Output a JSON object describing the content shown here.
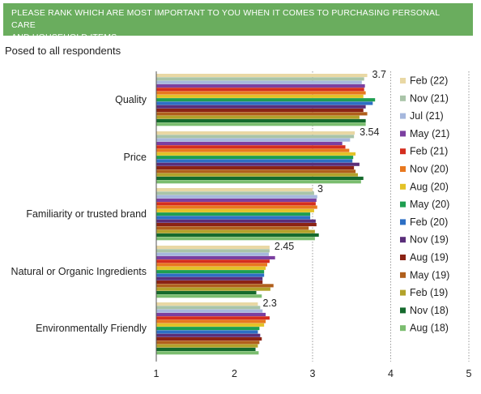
{
  "header": {
    "line1": "PLEASE RANK WHICH ARE MOST IMPORTANT TO YOU WHEN IT COMES TO PURCHASING PERSONAL CARE",
    "line2": "AND HOUSEHOLD ITEMS."
  },
  "subtitle": "Posed to all respondents",
  "colors": {
    "banner": "#6aad5e",
    "grid": "#9a9a9a"
  },
  "chart_data": {
    "type": "bar",
    "orientation": "horizontal",
    "categories": [
      "Quality",
      "Price",
      "Familiarity or trusted brand",
      "Natural or Organic Ingredients",
      "Environmentally Friendly"
    ],
    "xlim": [
      1,
      5
    ],
    "xticks": [
      "1",
      "2",
      "3",
      "4",
      "5"
    ],
    "grid": "dotted vertical at 3, 4, 5",
    "legend_position": "right",
    "annotations": [
      "3.7",
      "3.54",
      "3",
      "2.45",
      "2.3"
    ],
    "series": [
      {
        "name": "Feb (22)",
        "color": "#e9d8a4",
        "values": [
          3.7,
          3.54,
          3.0,
          2.45,
          2.3
        ]
      },
      {
        "name": "Nov (21)",
        "color": "#a9c4a8",
        "values": [
          3.66,
          3.53,
          3.02,
          2.45,
          2.33
        ]
      },
      {
        "name": "Jul (21)",
        "color": "#a5b7dd",
        "values": [
          3.63,
          3.48,
          3.06,
          2.44,
          2.36
        ]
      },
      {
        "name": "May (21)",
        "color": "#7b3fa0",
        "values": [
          3.67,
          3.38,
          3.05,
          2.52,
          2.4
        ]
      },
      {
        "name": "Feb (21)",
        "color": "#d42e1f",
        "values": [
          3.66,
          3.42,
          3.04,
          2.45,
          2.45
        ]
      },
      {
        "name": "Nov (20)",
        "color": "#e8781f",
        "values": [
          3.68,
          3.47,
          3.06,
          2.42,
          2.4
        ]
      },
      {
        "name": "Aug (20)",
        "color": "#e3c227",
        "values": [
          3.65,
          3.55,
          3.02,
          2.4,
          2.38
        ]
      },
      {
        "name": "May (20)",
        "color": "#1e9e50",
        "values": [
          3.8,
          3.52,
          2.97,
          2.38,
          2.32
        ]
      },
      {
        "name": "Feb (20)",
        "color": "#2d6fc4",
        "values": [
          3.77,
          3.51,
          2.97,
          2.38,
          2.3
        ]
      },
      {
        "name": "Nov (19)",
        "color": "#5a2e7a",
        "values": [
          3.68,
          3.6,
          3.04,
          2.36,
          2.33
        ]
      },
      {
        "name": "Aug (19)",
        "color": "#8b2314",
        "values": [
          3.65,
          3.53,
          3.05,
          2.36,
          2.35
        ]
      },
      {
        "name": "May (19)",
        "color": "#b05f1c",
        "values": [
          3.7,
          3.55,
          2.95,
          2.5,
          2.32
        ]
      },
      {
        "name": "Feb (19)",
        "color": "#b2a22a",
        "values": [
          3.6,
          3.58,
          3.03,
          2.46,
          2.3
        ]
      },
      {
        "name": "Nov (18)",
        "color": "#156a2d",
        "values": [
          3.68,
          3.65,
          3.08,
          2.28,
          2.27
        ]
      },
      {
        "name": "Aug (18)",
        "color": "#7bbd6f",
        "values": [
          3.68,
          3.62,
          3.03,
          2.35,
          2.31
        ]
      }
    ]
  }
}
